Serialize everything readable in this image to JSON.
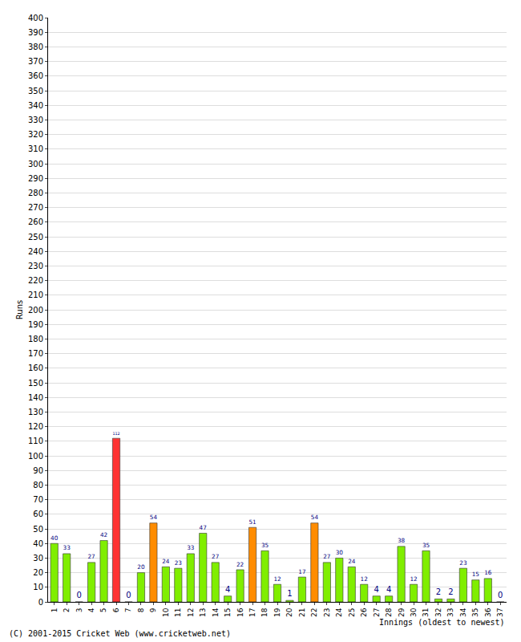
{
  "chart_data": {
    "type": "bar",
    "x_label": "Innings (oldest to newest)",
    "y_label": "Runs",
    "annotations": [
      "(C) 2001-2015 Cricket Web (www.cricketweb.net)"
    ],
    "categories": [
      "1",
      "2",
      "3",
      "4",
      "5",
      "6",
      "7",
      "8",
      "9",
      "10",
      "11",
      "12",
      "13",
      "14",
      "15",
      "16",
      "17",
      "18",
      "19",
      "20",
      "21",
      "22",
      "23",
      "24",
      "25",
      "26",
      "27",
      "28",
      "29",
      "30",
      "31",
      "32",
      "33",
      "34",
      "35",
      "36",
      "37"
    ],
    "values": [
      40,
      33,
      0,
      27,
      42,
      112,
      0,
      20,
      54,
      24,
      23,
      33,
      47,
      27,
      4,
      22,
      51,
      35,
      12,
      1,
      17,
      54,
      27,
      30,
      24,
      12,
      4,
      4,
      38,
      12,
      35,
      2,
      2,
      23,
      15,
      16,
      0
    ],
    "colors": [
      "#80ee00",
      "#80ee00",
      "#80ee00",
      "#80ee00",
      "#80ee00",
      "#ff3333",
      "#80ee00",
      "#80ee00",
      "#ff8c00",
      "#80ee00",
      "#80ee00",
      "#80ee00",
      "#80ee00",
      "#80ee00",
      "#80ee00",
      "#80ee00",
      "#ff8c00",
      "#80ee00",
      "#80ee00",
      "#80ee00",
      "#80ee00",
      "#ff8c00",
      "#80ee00",
      "#80ee00",
      "#80ee00",
      "#80ee00",
      "#80ee00",
      "#80ee00",
      "#80ee00",
      "#80ee00",
      "#80ee00",
      "#80ee00",
      "#80ee00",
      "#80ee00",
      "#80ee00",
      "#80ee00",
      "#80ee00"
    ],
    "ylim": [
      0,
      400
    ],
    "yticks": [
      0,
      10,
      20,
      30,
      40,
      50,
      60,
      70,
      80,
      90,
      100,
      110,
      120,
      130,
      140,
      150,
      160,
      170,
      180,
      190,
      200,
      210,
      220,
      230,
      240,
      250,
      260,
      270,
      280,
      290,
      300,
      310,
      320,
      330,
      340,
      350,
      360,
      370,
      380,
      390,
      400
    ],
    "grid": true,
    "data_labels": true
  }
}
